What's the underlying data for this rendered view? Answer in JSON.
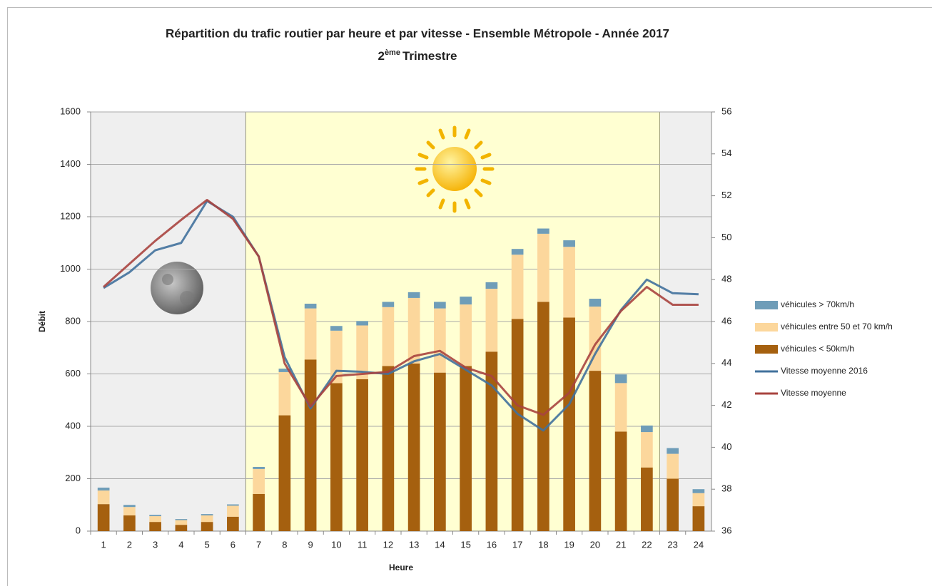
{
  "chart_data": {
    "type": "bar",
    "title": "Répartition du trafic routier par heure et par vitesse - Ensemble Métropole - Année  2017",
    "subtitle_parts": [
      "2",
      "ème",
      "Trimestre"
    ],
    "x_label": "Heure",
    "y_label": "Débit",
    "categories": [
      "1",
      "2",
      "3",
      "4",
      "5",
      "6",
      "7",
      "8",
      "9",
      "10",
      "11",
      "12",
      "13",
      "14",
      "15",
      "16",
      "17",
      "18",
      "19",
      "20",
      "21",
      "22",
      "23",
      "24"
    ],
    "series": [
      {
        "name": "véhicules < 50km/h",
        "color": "#a5600f",
        "values": [
          103,
          60,
          35,
          24,
          35,
          55,
          142,
          442,
          655,
          565,
          580,
          630,
          640,
          605,
          630,
          685,
          810,
          875,
          815,
          612,
          380,
          243,
          200,
          95
        ]
      },
      {
        "name": "véhicules entre  50 et 70 km/h",
        "color": "#fcd79c",
        "values": [
          52,
          32,
          22,
          18,
          25,
          42,
          95,
          165,
          195,
          200,
          205,
          225,
          250,
          245,
          235,
          240,
          245,
          260,
          270,
          245,
          185,
          135,
          95,
          50
        ]
      },
      {
        "name": "véhicules > 70km/h",
        "color": "#6f9db8",
        "values": [
          11,
          8,
          5,
          4,
          5,
          5,
          8,
          13,
          18,
          18,
          17,
          20,
          22,
          25,
          30,
          25,
          22,
          20,
          25,
          30,
          33,
          25,
          22,
          15
        ]
      },
      {
        "name": "Vitesse moyenne 2016",
        "color": "#41719c",
        "axis": "y2",
        "type": "line",
        "values": [
          47.6,
          48.35,
          49.4,
          49.75,
          51.75,
          51.0,
          49.1,
          44.3,
          41.85,
          43.65,
          43.6,
          43.5,
          44.1,
          44.45,
          43.7,
          42.95,
          41.6,
          40.8,
          42.05,
          44.45,
          46.55,
          48.0,
          47.35,
          47.3
        ]
      },
      {
        "name": "Vitesse moyenne",
        "color": "#a8443f",
        "axis": "y2",
        "type": "line",
        "values": [
          47.65,
          48.75,
          49.85,
          50.85,
          51.8,
          50.9,
          49.1,
          44.0,
          41.95,
          43.4,
          43.5,
          43.6,
          44.35,
          44.6,
          43.8,
          43.4,
          42.0,
          41.55,
          42.6,
          44.9,
          46.5,
          47.65,
          46.8,
          46.8
        ]
      }
    ],
    "ylim": [
      0,
      1600
    ],
    "yticks": [
      0,
      200,
      400,
      600,
      800,
      1000,
      1200,
      1400,
      1600
    ],
    "y2lim": [
      36,
      56
    ],
    "y2ticks": [
      36,
      38,
      40,
      42,
      44,
      46,
      48,
      50,
      52,
      54,
      56
    ],
    "grid": true,
    "legend": "right"
  }
}
